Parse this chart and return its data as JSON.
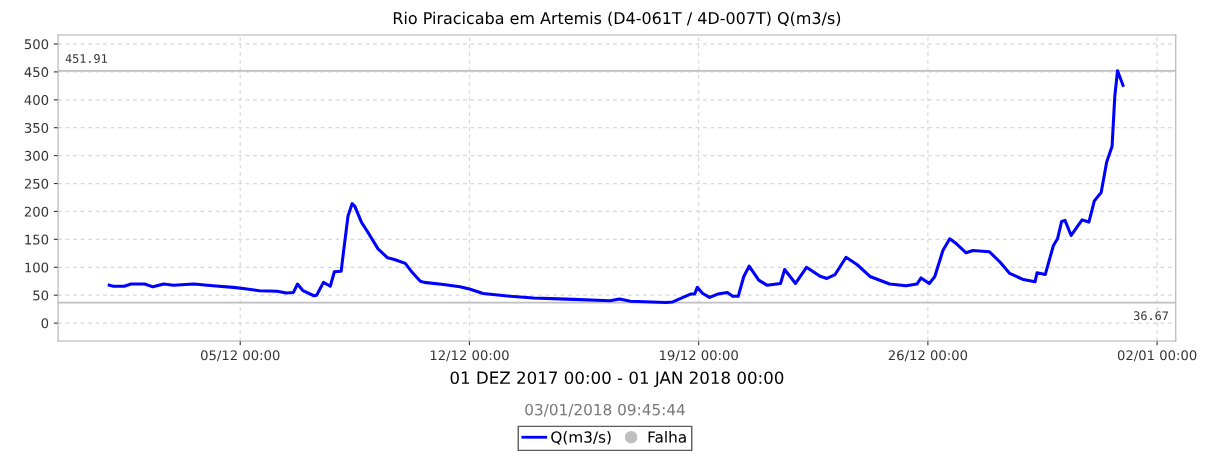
{
  "chart_data": {
    "type": "line",
    "title": "Rio Piracicaba em Artemis (D4-061T / 4D-007T) Q(m3/s)",
    "xlabel": "01 DEZ 2017 00:00 - 01 JAN 2018 00:00",
    "annotations": [
      "03/01/2018 09:45:44"
    ],
    "xlim": [
      "2017-11-29T10:30",
      "2018-01-02T13:40"
    ],
    "xticks": [
      {
        "value": "2017-12-05",
        "label": "05/12 00:00"
      },
      {
        "value": "2017-12-12",
        "label": "12/12 00:00"
      },
      {
        "value": "2017-12-19",
        "label": "19/12 00:00"
      },
      {
        "value": "2017-12-26",
        "label": "26/12 00:00"
      },
      {
        "value": "2018-01-02",
        "label": "02/01 00:00"
      }
    ],
    "ylim": [
      -32,
      516
    ],
    "yticks": [
      0,
      50,
      100,
      150,
      200,
      250,
      300,
      350,
      400,
      450,
      500
    ],
    "grid": true,
    "legend": "bottom",
    "line_style": "solid",
    "ref_lines": [
      {
        "axis": "y",
        "value": 451.91,
        "label": "451.91",
        "color": "#c0c0c0"
      },
      {
        "axis": "y",
        "value": 36.67,
        "label": "36.67",
        "color": "#c0c0c0"
      }
    ],
    "series": [
      {
        "name": "Q(m3/s)",
        "color": "#0000ff",
        "x": [
          "2017-12-01T00:00",
          "2017-12-01T03:00",
          "2017-12-01T11:00",
          "2017-12-01T16:00",
          "2017-12-02T02:00",
          "2017-12-02T08:00",
          "2017-12-02T16:00",
          "2017-12-02T23:00",
          "2017-12-03T14:00",
          "2017-12-04T04:00",
          "2017-12-04T19:00",
          "2017-12-05T05:00",
          "2017-12-05T14:00",
          "2017-12-06T03:00",
          "2017-12-06T10:00",
          "2017-12-06T15:00",
          "2017-12-06T18:00",
          "2017-12-06T22:00",
          "2017-12-07T06:00",
          "2017-12-07T08:00",
          "2017-12-07T13:00",
          "2017-12-07T18:00",
          "2017-12-07T21:00",
          "2017-12-08T02:00",
          "2017-12-08T03:00",
          "2017-12-08T07:00",
          "2017-12-08T10:00",
          "2017-12-08T12:00",
          "2017-12-08T17:00",
          "2017-12-08T21:00",
          "2017-12-09T05:00",
          "2017-12-09T12:00",
          "2017-12-09T17:00",
          "2017-12-10T01:00",
          "2017-12-10T06:00",
          "2017-12-10T12:00",
          "2017-12-10T15:00",
          "2017-12-11T05:00",
          "2017-12-11T17:00",
          "2017-12-12T00:00",
          "2017-12-12T10:00",
          "2017-12-13T06:00",
          "2017-12-13T23:00",
          "2017-12-14T23:00",
          "2017-12-16T07:00",
          "2017-12-16T14:00",
          "2017-12-16T22:00",
          "2017-12-18T00:00",
          "2017-12-18T05:00",
          "2017-12-18T18:00",
          "2017-12-18T21:00",
          "2017-12-18T23:00",
          "2017-12-19T03:00",
          "2017-12-19T08:00",
          "2017-12-19T14:00",
          "2017-12-19T21:00",
          "2017-12-20T01:00",
          "2017-12-20T05:00",
          "2017-12-20T09:00",
          "2017-12-20T13:00",
          "2017-12-20T20:00",
          "2017-12-21T02:00",
          "2017-12-21T12:00",
          "2017-12-21T15:00",
          "2017-12-21T23:00",
          "2017-12-22T07:00",
          "2017-12-22T17:00",
          "2017-12-22T22:00",
          "2017-12-23T04:00",
          "2017-12-23T12:00",
          "2017-12-23T20:00",
          "2017-12-24T06:00",
          "2017-12-24T20:00",
          "2017-12-25T08:00",
          "2017-12-25T16:00",
          "2017-12-25T19:00",
          "2017-12-26T01:00",
          "2017-12-26T05:00",
          "2017-12-26T11:00",
          "2017-12-26T16:00",
          "2017-12-26T21:00",
          "2017-12-27T04:00",
          "2017-12-27T09:00",
          "2017-12-27T21:00",
          "2017-12-28T05:00",
          "2017-12-28T12:00",
          "2017-12-28T22:00",
          "2017-12-29T06:30",
          "2017-12-29T08:00",
          "2017-12-29T14:00",
          "2017-12-29T20:00",
          "2017-12-29T23:00",
          "2017-12-30T02:00",
          "2017-12-30T04:30",
          "2017-12-30T09:00",
          "2017-12-30T17:00",
          "2017-12-30T22:00",
          "2017-12-31T02:00",
          "2017-12-31T07:00",
          "2017-12-31T11:00",
          "2017-12-31T15:00",
          "2017-12-31T17:00",
          "2017-12-31T19:00",
          "2017-12-31T23:00"
        ],
        "values": [
          68,
          66,
          66,
          70,
          70,
          65,
          70,
          68,
          70,
          67,
          64,
          61,
          58,
          57,
          54,
          55,
          70,
          58,
          49,
          50,
          73,
          66,
          92,
          93,
          114,
          192,
          214,
          209,
          180,
          165,
          133,
          117,
          114,
          107,
          91,
          75,
          73,
          69,
          65,
          61,
          53,
          48,
          45,
          43,
          40,
          43,
          39,
          37,
          38,
          52,
          52,
          64,
          53,
          46,
          52,
          55,
          48,
          48,
          83,
          102,
          77,
          68,
          71,
          96,
          71,
          100,
          84,
          80,
          87,
          118,
          105,
          83,
          70,
          67,
          70,
          81,
          71,
          83,
          130,
          151,
          142,
          126,
          130,
          128,
          109,
          89,
          78,
          74,
          90,
          87,
          139,
          151,
          182,
          184,
          157,
          185,
          181,
          219,
          234,
          288,
          317,
          407,
          452,
          426
        ]
      },
      {
        "name": "Falha",
        "color": "#c0c0c0",
        "type": "scatter",
        "marker": "circle"
      }
    ]
  }
}
